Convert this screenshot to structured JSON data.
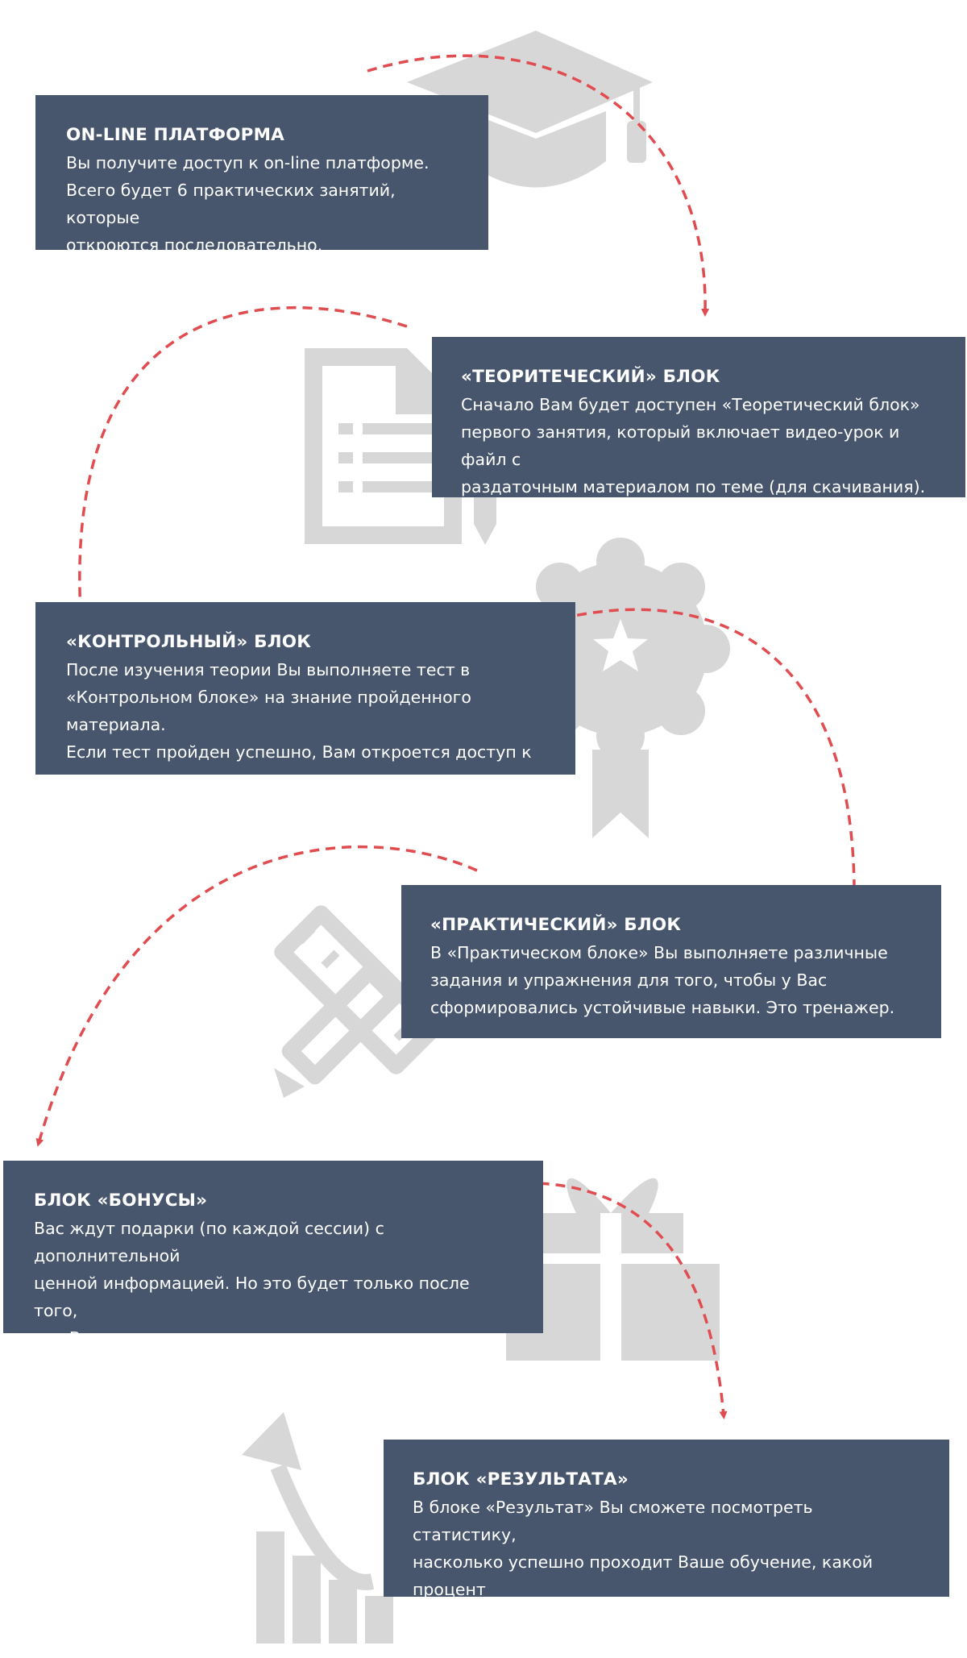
{
  "steps": [
    {
      "title": "ON-LINE ПЛАТФОРМА",
      "text": "Вы получите доступ к on-line платформе.\nВсего будет 6 практических занятий, которые\nоткроются последовательно.",
      "icon": "graduation-cap-icon"
    },
    {
      "title": "«ТЕОРИТЕЧЕСКИЙ» БЛОК",
      "text": "Сначало Вам будет доступен «Теоретический блок»\nпервого занятия, который включает видео-урок и файл с\nраздаточным материалом по теме (для скачивания).",
      "icon": "document-pencil-icon"
    },
    {
      "title": "«КОНТРОЛЬНЫЙ» БЛОК",
      "text": "После изучения теории Вы выполняете тест в\n«Контрольном блоке» на знание пройденного материала.\nЕсли тест пройден успешно, Вам откроется доступ к\nпрактическим заданиям.",
      "icon": "award-badge-icon"
    },
    {
      "title": "«ПРАКТИЧЕСКИЙ» БЛОК",
      "text": "В «Практическом блоке» Вы выполняете различные\nзадания и упражнения для того, чтобы у Вас\nсформировались устойчивые навыки. Это тренажер.",
      "icon": "ruler-pencil-icon"
    },
    {
      "title": "БЛОК «БОНУСЫ»",
      "text": "Вас ждут подарки (по каждой сессии) с дополнительной\nценной информацией. Но это будет только после того,\nкак Вы сделаете все практические задания по каждой\nсессии.",
      "icon": "gift-icon"
    },
    {
      "title": "БЛОК «РЕЗУЛЬТАТА»",
      "text": "В блоке «Результат» Вы сможете посмотреть статистику,\nнасколько успешно проходит Ваше обучение, какой процент\nвыполнения заданий, укладываетесь ли вы в сроки и т.д.",
      "icon": "growth-chart-icon"
    }
  ],
  "colors": {
    "box_background": "#47556d",
    "box_text": "#ffffff",
    "icon_gray": "#d7d7d7",
    "arrow_red": "#e04c4f"
  }
}
